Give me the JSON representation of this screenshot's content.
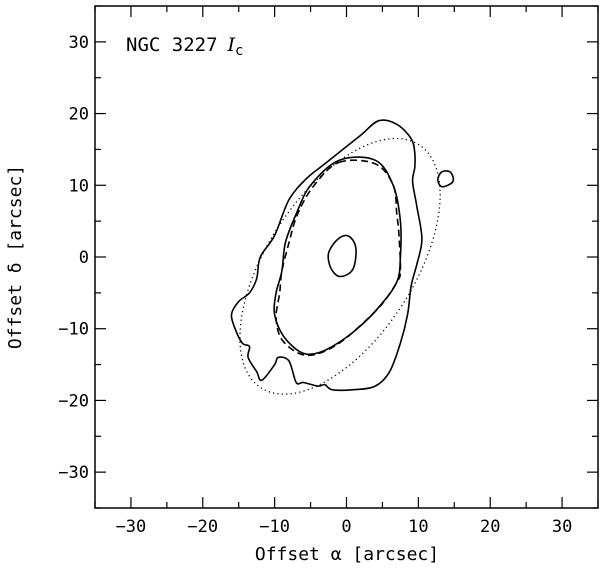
{
  "chart_data": {
    "type": "line",
    "title": "NGC 3227",
    "title_band": "I",
    "title_band_sub": "c",
    "xlabel": "Offset α [arcsec]",
    "ylabel": "Offset δ [arcsec]",
    "xlim": [
      -35,
      35
    ],
    "ylim": [
      -35,
      35
    ],
    "xticks": [
      -30,
      -20,
      -10,
      0,
      10,
      20,
      30
    ],
    "yticks": [
      -30,
      -20,
      -10,
      0,
      10,
      20,
      30
    ],
    "xtick_labels": [
      "−30",
      "−20",
      "−10",
      "0",
      "10",
      "20",
      "30"
    ],
    "ytick_labels": [
      "−30",
      "−20",
      "−10",
      "0",
      "10",
      "20",
      "30"
    ],
    "grid": false,
    "series": [
      {
        "style": "solid",
        "closed": true,
        "points": [
          [
            -1,
            -2.7
          ],
          [
            0.7,
            -2
          ],
          [
            1.3,
            0
          ],
          [
            1.1,
            2
          ],
          [
            0,
            3
          ],
          [
            -1.4,
            2.3
          ],
          [
            -2.5,
            0.5
          ],
          [
            -2.2,
            -1.5
          ]
        ]
      },
      {
        "style": "solid",
        "closed": true,
        "points": [
          [
            13.3,
            9.8
          ],
          [
            14.8,
            10.5
          ],
          [
            14.5,
            11.8
          ],
          [
            13.3,
            11.9
          ],
          [
            12.7,
            10.8
          ]
        ]
      },
      {
        "style": "solid",
        "closed": true,
        "points": [
          [
            -1,
            13.5
          ],
          [
            4,
            13.5
          ],
          [
            6.5,
            10
          ],
          [
            7.5,
            5
          ],
          [
            7.5,
            0
          ],
          [
            7,
            -3.5
          ],
          [
            4.5,
            -7
          ],
          [
            1.5,
            -10
          ],
          [
            -2,
            -12.5
          ],
          [
            -4.5,
            -13.5
          ],
          [
            -6.5,
            -13.2
          ],
          [
            -8.8,
            -11
          ],
          [
            -10,
            -8
          ],
          [
            -9.8,
            -5
          ],
          [
            -9,
            -2
          ],
          [
            -8.5,
            2
          ],
          [
            -7,
            6
          ],
          [
            -5,
            10
          ]
        ]
      },
      {
        "style": "solid",
        "closed": true,
        "points": [
          [
            -0.5,
            15
          ],
          [
            2,
            17
          ],
          [
            4.5,
            19
          ],
          [
            7,
            18.5
          ],
          [
            9,
            16.5
          ],
          [
            9.5,
            14.5
          ],
          [
            9.5,
            12.5
          ],
          [
            9.2,
            10.5
          ],
          [
            9.8,
            7
          ],
          [
            10.5,
            2.5
          ],
          [
            9.8,
            -1
          ],
          [
            9,
            -4
          ],
          [
            8.5,
            -8
          ],
          [
            7.5,
            -12
          ],
          [
            6,
            -16
          ],
          [
            4,
            -18
          ],
          [
            1,
            -18.5
          ],
          [
            -2,
            -18.5
          ],
          [
            -3,
            -17.8
          ],
          [
            -4,
            -18
          ],
          [
            -6,
            -17.5
          ],
          [
            -7,
            -17.5
          ],
          [
            -8,
            -14.5
          ],
          [
            -9.5,
            -14
          ],
          [
            -10,
            -15
          ],
          [
            -11.8,
            -17.2
          ],
          [
            -12.5,
            -16
          ],
          [
            -13.7,
            -14
          ],
          [
            -13.5,
            -12.5
          ],
          [
            -14.5,
            -12
          ],
          [
            -15.5,
            -10
          ],
          [
            -16,
            -8
          ],
          [
            -15,
            -6.2
          ],
          [
            -13.5,
            -5
          ],
          [
            -12.5,
            -3
          ],
          [
            -12,
            0
          ],
          [
            -10,
            3
          ],
          [
            -8,
            8
          ],
          [
            -5.5,
            11
          ],
          [
            -3,
            13
          ]
        ]
      },
      {
        "style": "dashed",
        "closed": true,
        "points": [
          [
            -1,
            13.2
          ],
          [
            4,
            13
          ],
          [
            6.5,
            10
          ],
          [
            7,
            6
          ],
          [
            7.3,
            3
          ],
          [
            7.5,
            -2
          ],
          [
            7,
            -3.5
          ],
          [
            5,
            -6.5
          ],
          [
            2,
            -9.5
          ],
          [
            -1,
            -12
          ],
          [
            -4,
            -13.5
          ],
          [
            -6.5,
            -13.5
          ],
          [
            -9,
            -11.5
          ],
          [
            -9.8,
            -8.5
          ],
          [
            -9.3,
            -5
          ],
          [
            -9,
            -2
          ],
          [
            -8,
            2
          ],
          [
            -6.8,
            6
          ],
          [
            -4.5,
            10
          ]
        ]
      },
      {
        "style": "dotted",
        "closed": true,
        "ellipse": {
          "center": [
            -0.9,
            -1.3
          ],
          "semi_major": 20.2,
          "semi_minor": 10.2,
          "position_angle_deg": 33
        }
      }
    ]
  }
}
